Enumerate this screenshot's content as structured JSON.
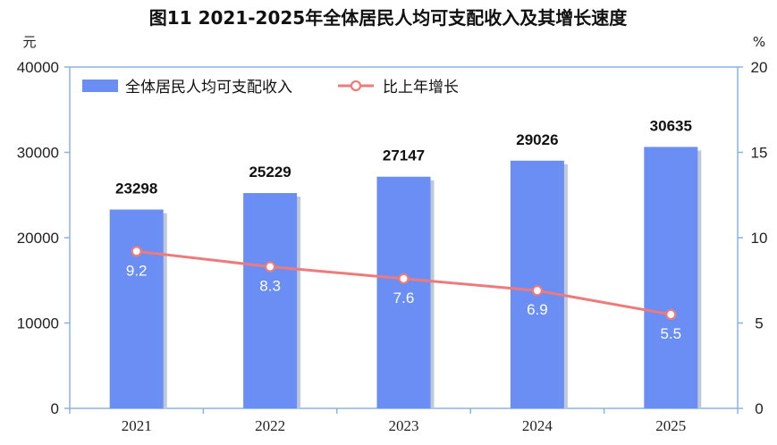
{
  "chart_data": {
    "type": "bar",
    "title": "图11  2021-2025年全体居民人均可支配收入及其增长速度",
    "categories": [
      "2021",
      "2022",
      "2023",
      "2024",
      "2025"
    ],
    "series": [
      {
        "name": "全体居民人均可支配收入",
        "type": "bar",
        "axis": "left",
        "values": [
          23298,
          25229,
          27147,
          29026,
          30635
        ]
      },
      {
        "name": "比上年增长",
        "type": "line",
        "axis": "right",
        "values": [
          9.2,
          8.3,
          7.6,
          6.9,
          5.5
        ]
      }
    ],
    "y_left": {
      "unit": "元",
      "ylim": [
        0,
        40000
      ],
      "ticks": [
        "0",
        "10000",
        "20000",
        "30000",
        "40000"
      ]
    },
    "y_right": {
      "unit": "%",
      "ylim": [
        0,
        20
      ],
      "ticks": [
        "0",
        "5",
        "10",
        "15",
        "20"
      ]
    },
    "grid": false,
    "legend_position": "top-left",
    "colors": {
      "bar": "#6b8ef5",
      "bar_shadow": "#bfc8d8",
      "line": "#ee7b7b",
      "axis": "#8ab4e0"
    }
  }
}
